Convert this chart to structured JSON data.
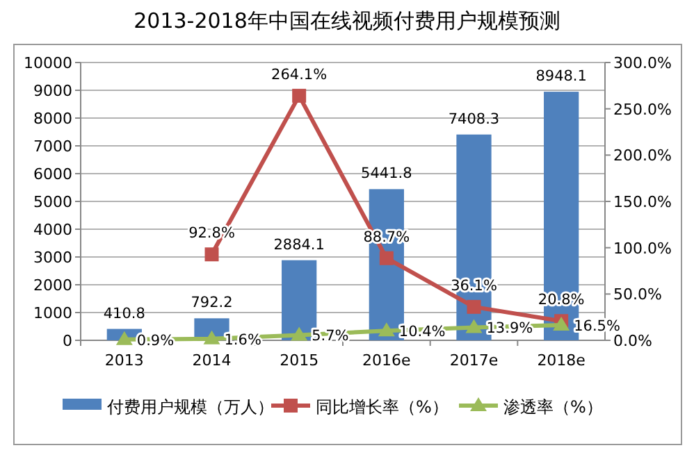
{
  "chart_data": {
    "type": "bar",
    "title": "2013-2018年中国在线视频付费用户规模预测",
    "categories": [
      "2013",
      "2014",
      "2015",
      "2016e",
      "2017e",
      "2018e"
    ],
    "series": [
      {
        "name": "付费用户规模（万人）",
        "color": "#4f81bd",
        "values": [
          410.8,
          792.2,
          2884.1,
          5441.8,
          7408.3,
          8948.1
        ],
        "value_labels": [
          "410.8",
          "792.2",
          "2884.1",
          "5441.8",
          "7408.3",
          "8948.1"
        ]
      },
      {
        "name": "同比增长率（%）",
        "type": "line",
        "axis": "y2",
        "marker": "square",
        "color": "#c0504d",
        "values": [
          null,
          92.8,
          264.1,
          88.7,
          36.1,
          20.8
        ],
        "value_labels": [
          null,
          "92.8%",
          "264.1%",
          "88.7%",
          "36.1%",
          "20.8%"
        ]
      },
      {
        "name": "渗透率（%）",
        "type": "line",
        "axis": "y2",
        "marker": "triangle",
        "color": "#9bbb59",
        "values": [
          0.9,
          1.6,
          5.7,
          10.4,
          13.9,
          16.5
        ],
        "value_labels": [
          "0.9%",
          "1.6%",
          "5.7%",
          "10.4%",
          "13.9%",
          "16.5%"
        ]
      }
    ],
    "ylim": [
      0,
      10000
    ],
    "yticks": [
      0,
      1000,
      2000,
      3000,
      4000,
      5000,
      6000,
      7000,
      8000,
      9000,
      10000
    ],
    "y2lim": [
      0,
      300
    ],
    "y2ticks": [
      {
        "value": 0,
        "label": "0.0%"
      },
      {
        "value": 50,
        "label": "50.0%"
      },
      {
        "value": 100,
        "label": "100.0%"
      },
      {
        "value": 150,
        "label": "150.0%"
      },
      {
        "value": 200,
        "label": "200.0%"
      },
      {
        "value": 250,
        "label": "250.0%"
      },
      {
        "value": 300,
        "label": "300.0%"
      }
    ],
    "grid": "y",
    "legend": "bottom"
  }
}
